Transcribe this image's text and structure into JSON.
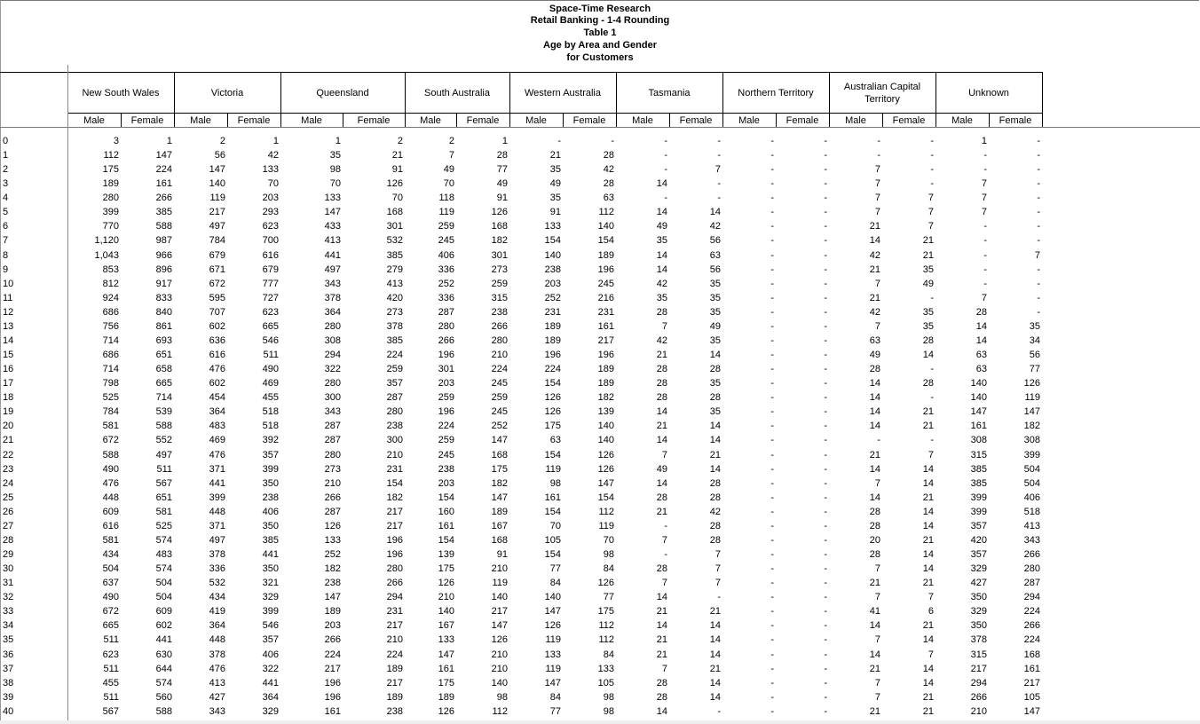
{
  "title_lines": [
    "Space-Time Research",
    "Retail Banking - 1-4 Rounding",
    "Table 1",
    "Age by Area and Gender",
    "for Customers"
  ],
  "areas": [
    "New South Wales",
    "Victoria",
    "Queensland",
    "South Australia",
    "Western Australia",
    "Tasmania",
    "Northern Territory",
    "Australian Capital Territory",
    "Unknown"
  ],
  "genders": [
    "Male",
    "Female"
  ],
  "rows": [
    {
      "age": "0",
      "values": [
        "3",
        "1",
        "2",
        "1",
        "1",
        "2",
        "2",
        "1",
        "-",
        "-",
        "-",
        "-",
        "-",
        "-",
        "-",
        "-",
        "1",
        "-"
      ]
    },
    {
      "age": "1",
      "values": [
        "112",
        "147",
        "56",
        "42",
        "35",
        "21",
        "7",
        "28",
        "21",
        "28",
        "-",
        "-",
        "-",
        "-",
        "-",
        "-",
        "-",
        "-"
      ]
    },
    {
      "age": "2",
      "values": [
        "175",
        "224",
        "147",
        "133",
        "98",
        "91",
        "49",
        "77",
        "35",
        "42",
        "-",
        "7",
        "-",
        "-",
        "7",
        "-",
        "-",
        "-"
      ]
    },
    {
      "age": "3",
      "values": [
        "189",
        "161",
        "140",
        "70",
        "70",
        "126",
        "70",
        "49",
        "49",
        "28",
        "14",
        "-",
        "-",
        "-",
        "7",
        "-",
        "7",
        "-"
      ]
    },
    {
      "age": "4",
      "values": [
        "280",
        "266",
        "119",
        "203",
        "133",
        "70",
        "118",
        "91",
        "35",
        "63",
        "-",
        "-",
        "-",
        "-",
        "7",
        "7",
        "7",
        "-"
      ]
    },
    {
      "age": "5",
      "values": [
        "399",
        "385",
        "217",
        "293",
        "147",
        "168",
        "119",
        "126",
        "91",
        "112",
        "14",
        "14",
        "-",
        "-",
        "7",
        "7",
        "7",
        "-"
      ]
    },
    {
      "age": "6",
      "values": [
        "770",
        "588",
        "497",
        "623",
        "433",
        "301",
        "259",
        "168",
        "133",
        "140",
        "49",
        "42",
        "-",
        "-",
        "21",
        "7",
        "-",
        "-"
      ]
    },
    {
      "age": "7",
      "values": [
        "1,120",
        "987",
        "784",
        "700",
        "413",
        "532",
        "245",
        "182",
        "154",
        "154",
        "35",
        "56",
        "-",
        "-",
        "14",
        "21",
        "-",
        "-"
      ]
    },
    {
      "age": "8",
      "values": [
        "1,043",
        "966",
        "679",
        "616",
        "441",
        "385",
        "406",
        "301",
        "140",
        "189",
        "14",
        "63",
        "-",
        "-",
        "42",
        "21",
        "-",
        "7"
      ]
    },
    {
      "age": "9",
      "values": [
        "853",
        "896",
        "671",
        "679",
        "497",
        "279",
        "336",
        "273",
        "238",
        "196",
        "14",
        "56",
        "-",
        "-",
        "21",
        "35",
        "-",
        "-"
      ]
    },
    {
      "age": "10",
      "values": [
        "812",
        "917",
        "672",
        "777",
        "343",
        "413",
        "252",
        "259",
        "203",
        "245",
        "42",
        "35",
        "-",
        "-",
        "7",
        "49",
        "-",
        "-"
      ]
    },
    {
      "age": "11",
      "values": [
        "924",
        "833",
        "595",
        "727",
        "378",
        "420",
        "336",
        "315",
        "252",
        "216",
        "35",
        "35",
        "-",
        "-",
        "21",
        "-",
        "7",
        "-"
      ]
    },
    {
      "age": "12",
      "values": [
        "686",
        "840",
        "707",
        "623",
        "364",
        "273",
        "287",
        "238",
        "231",
        "231",
        "28",
        "35",
        "-",
        "-",
        "42",
        "35",
        "28",
        "-"
      ]
    },
    {
      "age": "13",
      "values": [
        "756",
        "861",
        "602",
        "665",
        "280",
        "378",
        "280",
        "266",
        "189",
        "161",
        "7",
        "49",
        "-",
        "-",
        "7",
        "35",
        "14",
        "35"
      ]
    },
    {
      "age": "14",
      "values": [
        "714",
        "693",
        "636",
        "546",
        "308",
        "385",
        "266",
        "280",
        "189",
        "217",
        "42",
        "35",
        "-",
        "-",
        "63",
        "28",
        "14",
        "34"
      ]
    },
    {
      "age": "15",
      "values": [
        "686",
        "651",
        "616",
        "511",
        "294",
        "224",
        "196",
        "210",
        "196",
        "196",
        "21",
        "14",
        "-",
        "-",
        "49",
        "14",
        "63",
        "56"
      ]
    },
    {
      "age": "16",
      "values": [
        "714",
        "658",
        "476",
        "490",
        "322",
        "259",
        "301",
        "224",
        "224",
        "189",
        "28",
        "28",
        "-",
        "-",
        "28",
        "-",
        "63",
        "77"
      ]
    },
    {
      "age": "17",
      "values": [
        "798",
        "665",
        "602",
        "469",
        "280",
        "357",
        "203",
        "245",
        "154",
        "189",
        "28",
        "35",
        "-",
        "-",
        "14",
        "28",
        "140",
        "126"
      ]
    },
    {
      "age": "18",
      "values": [
        "525",
        "714",
        "454",
        "455",
        "300",
        "287",
        "259",
        "259",
        "126",
        "182",
        "28",
        "28",
        "-",
        "-",
        "14",
        "-",
        "140",
        "119"
      ]
    },
    {
      "age": "19",
      "values": [
        "784",
        "539",
        "364",
        "518",
        "343",
        "280",
        "196",
        "245",
        "126",
        "139",
        "14",
        "35",
        "-",
        "-",
        "14",
        "21",
        "147",
        "147"
      ]
    },
    {
      "age": "20",
      "values": [
        "581",
        "588",
        "483",
        "518",
        "287",
        "238",
        "224",
        "252",
        "175",
        "140",
        "21",
        "14",
        "-",
        "-",
        "14",
        "21",
        "161",
        "182"
      ]
    },
    {
      "age": "21",
      "values": [
        "672",
        "552",
        "469",
        "392",
        "287",
        "300",
        "259",
        "147",
        "63",
        "140",
        "14",
        "14",
        "-",
        "-",
        "-",
        "-",
        "308",
        "308"
      ]
    },
    {
      "age": "22",
      "values": [
        "588",
        "497",
        "476",
        "357",
        "280",
        "210",
        "245",
        "168",
        "154",
        "126",
        "7",
        "21",
        "-",
        "-",
        "21",
        "7",
        "315",
        "399"
      ]
    },
    {
      "age": "23",
      "values": [
        "490",
        "511",
        "371",
        "399",
        "273",
        "231",
        "238",
        "175",
        "119",
        "126",
        "49",
        "14",
        "-",
        "-",
        "14",
        "14",
        "385",
        "504"
      ]
    },
    {
      "age": "24",
      "values": [
        "476",
        "567",
        "441",
        "350",
        "210",
        "154",
        "203",
        "182",
        "98",
        "147",
        "14",
        "28",
        "-",
        "-",
        "7",
        "14",
        "385",
        "504"
      ]
    },
    {
      "age": "25",
      "values": [
        "448",
        "651",
        "399",
        "238",
        "266",
        "182",
        "154",
        "147",
        "161",
        "154",
        "28",
        "28",
        "-",
        "-",
        "14",
        "21",
        "399",
        "406"
      ]
    },
    {
      "age": "26",
      "values": [
        "609",
        "581",
        "448",
        "406",
        "287",
        "217",
        "160",
        "189",
        "154",
        "112",
        "21",
        "42",
        "-",
        "-",
        "28",
        "14",
        "399",
        "518"
      ]
    },
    {
      "age": "27",
      "values": [
        "616",
        "525",
        "371",
        "350",
        "126",
        "217",
        "161",
        "167",
        "70",
        "119",
        "-",
        "28",
        "-",
        "-",
        "28",
        "14",
        "357",
        "413"
      ]
    },
    {
      "age": "28",
      "values": [
        "581",
        "574",
        "497",
        "385",
        "133",
        "196",
        "154",
        "168",
        "105",
        "70",
        "7",
        "28",
        "-",
        "-",
        "20",
        "21",
        "420",
        "343"
      ]
    },
    {
      "age": "29",
      "values": [
        "434",
        "483",
        "378",
        "441",
        "252",
        "196",
        "139",
        "91",
        "154",
        "98",
        "-",
        "7",
        "-",
        "-",
        "28",
        "14",
        "357",
        "266"
      ]
    },
    {
      "age": "30",
      "values": [
        "504",
        "574",
        "336",
        "350",
        "182",
        "280",
        "175",
        "210",
        "77",
        "84",
        "28",
        "7",
        "-",
        "-",
        "7",
        "14",
        "329",
        "280"
      ]
    },
    {
      "age": "31",
      "values": [
        "637",
        "504",
        "532",
        "321",
        "238",
        "266",
        "126",
        "119",
        "84",
        "126",
        "7",
        "7",
        "-",
        "-",
        "21",
        "21",
        "427",
        "287"
      ]
    },
    {
      "age": "32",
      "values": [
        "490",
        "504",
        "434",
        "329",
        "147",
        "294",
        "210",
        "140",
        "140",
        "77",
        "14",
        "-",
        "-",
        "-",
        "7",
        "7",
        "350",
        "294"
      ]
    },
    {
      "age": "33",
      "values": [
        "672",
        "609",
        "419",
        "399",
        "189",
        "231",
        "140",
        "217",
        "147",
        "175",
        "21",
        "21",
        "-",
        "-",
        "41",
        "6",
        "329",
        "224"
      ]
    },
    {
      "age": "34",
      "values": [
        "665",
        "602",
        "364",
        "546",
        "203",
        "217",
        "167",
        "147",
        "126",
        "112",
        "14",
        "14",
        "-",
        "-",
        "14",
        "21",
        "350",
        "266"
      ]
    },
    {
      "age": "35",
      "values": [
        "511",
        "441",
        "448",
        "357",
        "266",
        "210",
        "133",
        "126",
        "119",
        "112",
        "21",
        "14",
        "-",
        "-",
        "7",
        "14",
        "378",
        "224"
      ]
    },
    {
      "age": "36",
      "values": [
        "623",
        "630",
        "378",
        "406",
        "224",
        "224",
        "147",
        "210",
        "133",
        "84",
        "21",
        "14",
        "-",
        "-",
        "14",
        "7",
        "315",
        "168"
      ]
    },
    {
      "age": "37",
      "values": [
        "511",
        "644",
        "476",
        "322",
        "217",
        "189",
        "161",
        "210",
        "119",
        "133",
        "7",
        "21",
        "-",
        "-",
        "21",
        "14",
        "217",
        "161"
      ]
    },
    {
      "age": "38",
      "values": [
        "455",
        "574",
        "413",
        "441",
        "196",
        "217",
        "175",
        "140",
        "147",
        "105",
        "28",
        "14",
        "-",
        "-",
        "7",
        "14",
        "294",
        "217"
      ]
    },
    {
      "age": "39",
      "values": [
        "511",
        "560",
        "427",
        "364",
        "196",
        "189",
        "189",
        "98",
        "84",
        "98",
        "28",
        "14",
        "-",
        "-",
        "7",
        "21",
        "266",
        "105"
      ]
    },
    {
      "age": "40",
      "values": [
        "567",
        "588",
        "343",
        "329",
        "161",
        "238",
        "126",
        "112",
        "77",
        "98",
        "14",
        "-",
        "-",
        "-",
        "21",
        "21",
        "210",
        "147"
      ]
    }
  ]
}
